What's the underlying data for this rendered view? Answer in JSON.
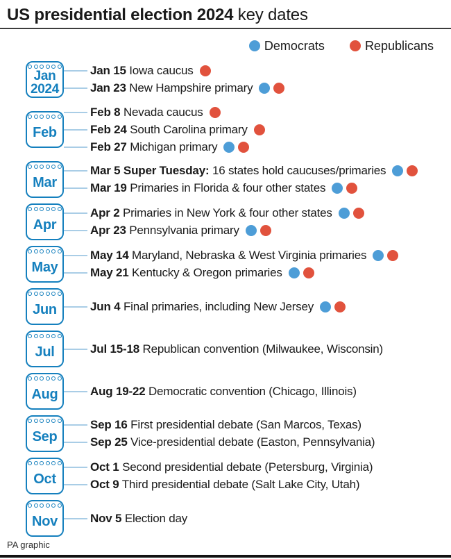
{
  "title": {
    "bold": "US presidential election 2024",
    "regular": " key dates"
  },
  "legend": [
    {
      "party": "democrats",
      "label": "Democrats",
      "color": "#4d9dd7"
    },
    {
      "party": "republicans",
      "label": "Republicans",
      "color": "#e1523d"
    }
  ],
  "colors": {
    "dem_dot": "#4d9dd7",
    "rep_dot": "#e1523d",
    "calendar_blue": "#1580be",
    "connector_line": "#a9cde6",
    "title_rule": "#3c3c3c",
    "bottom_bar": "#111111",
    "text_ink": "#1a1a1a",
    "credit_text": "#2b2b2b"
  },
  "footer": {
    "credit": "PA graphic"
  },
  "chart_data": {
    "type": "table",
    "title": "US presidential election 2024 key dates",
    "legend_entries": [
      "Democrats",
      "Republicans"
    ],
    "months": [
      {
        "label": "Jan",
        "sublabel": "2024",
        "events": [
          {
            "date": "Jan 15",
            "desc": "Iowa caucus",
            "dots": [
              "R"
            ]
          },
          {
            "date": "Jan 23",
            "desc": "New Hampshire primary",
            "dots": [
              "D",
              "R"
            ]
          }
        ]
      },
      {
        "label": "Feb",
        "events": [
          {
            "date": "Feb 8",
            "desc": "Nevada caucus",
            "dots": [
              "R"
            ]
          },
          {
            "date": "Feb 24",
            "desc": "South Carolina primary",
            "dots": [
              "R"
            ]
          },
          {
            "date": "Feb 27",
            "desc": "Michigan primary",
            "dots": [
              "D",
              "R"
            ]
          }
        ]
      },
      {
        "label": "Mar",
        "events": [
          {
            "date": "Mar 5 Super Tuesday:",
            "desc": "16 states hold caucuses/primaries",
            "dots": [
              "D",
              "R"
            ]
          },
          {
            "date": "Mar 19",
            "desc": "Primaries in Florida & four other states",
            "dots": [
              "D",
              "R"
            ]
          }
        ]
      },
      {
        "label": "Apr",
        "events": [
          {
            "date": "Apr 2",
            "desc": "Primaries in New York & four other states",
            "dots": [
              "D",
              "R"
            ]
          },
          {
            "date": "Apr 23",
            "desc": "Pennsylvania primary",
            "dots": [
              "D",
              "R"
            ]
          }
        ]
      },
      {
        "label": "May",
        "events": [
          {
            "date": "May 14",
            "desc": "Maryland, Nebraska & West Virginia primaries",
            "dots": [
              "D",
              "R"
            ]
          },
          {
            "date": "May 21",
            "desc": "Kentucky & Oregon primaries",
            "dots": [
              "D",
              "R"
            ]
          }
        ]
      },
      {
        "label": "Jun",
        "events": [
          {
            "date": "Jun 4",
            "desc": "Final primaries, including New Jersey",
            "dots": [
              "D",
              "R"
            ]
          }
        ]
      },
      {
        "label": "Jul",
        "events": [
          {
            "date": "Jul 15-18",
            "desc": "Republican convention (Milwaukee, Wisconsin)",
            "dots": []
          }
        ]
      },
      {
        "label": "Aug",
        "events": [
          {
            "date": "Aug 19-22",
            "desc": "Democratic convention (Chicago, Illinois)",
            "dots": []
          }
        ]
      },
      {
        "label": "Sep",
        "events": [
          {
            "date": "Sep 16",
            "desc": "First presidential debate (San Marcos, Texas)",
            "dots": []
          },
          {
            "date": "Sep 25",
            "desc": "Vice-presidential debate (Easton, Pennsylvania)",
            "dots": []
          }
        ]
      },
      {
        "label": "Oct",
        "events": [
          {
            "date": "Oct 1",
            "desc": "Second presidential debate (Petersburg, Virginia)",
            "dots": []
          },
          {
            "date": "Oct 9",
            "desc": "Third presidential debate (Salt Lake City, Utah)",
            "dots": []
          }
        ]
      },
      {
        "label": "Nov",
        "events": [
          {
            "date": "Nov 5",
            "desc": "Election day",
            "dots": []
          }
        ]
      }
    ]
  }
}
